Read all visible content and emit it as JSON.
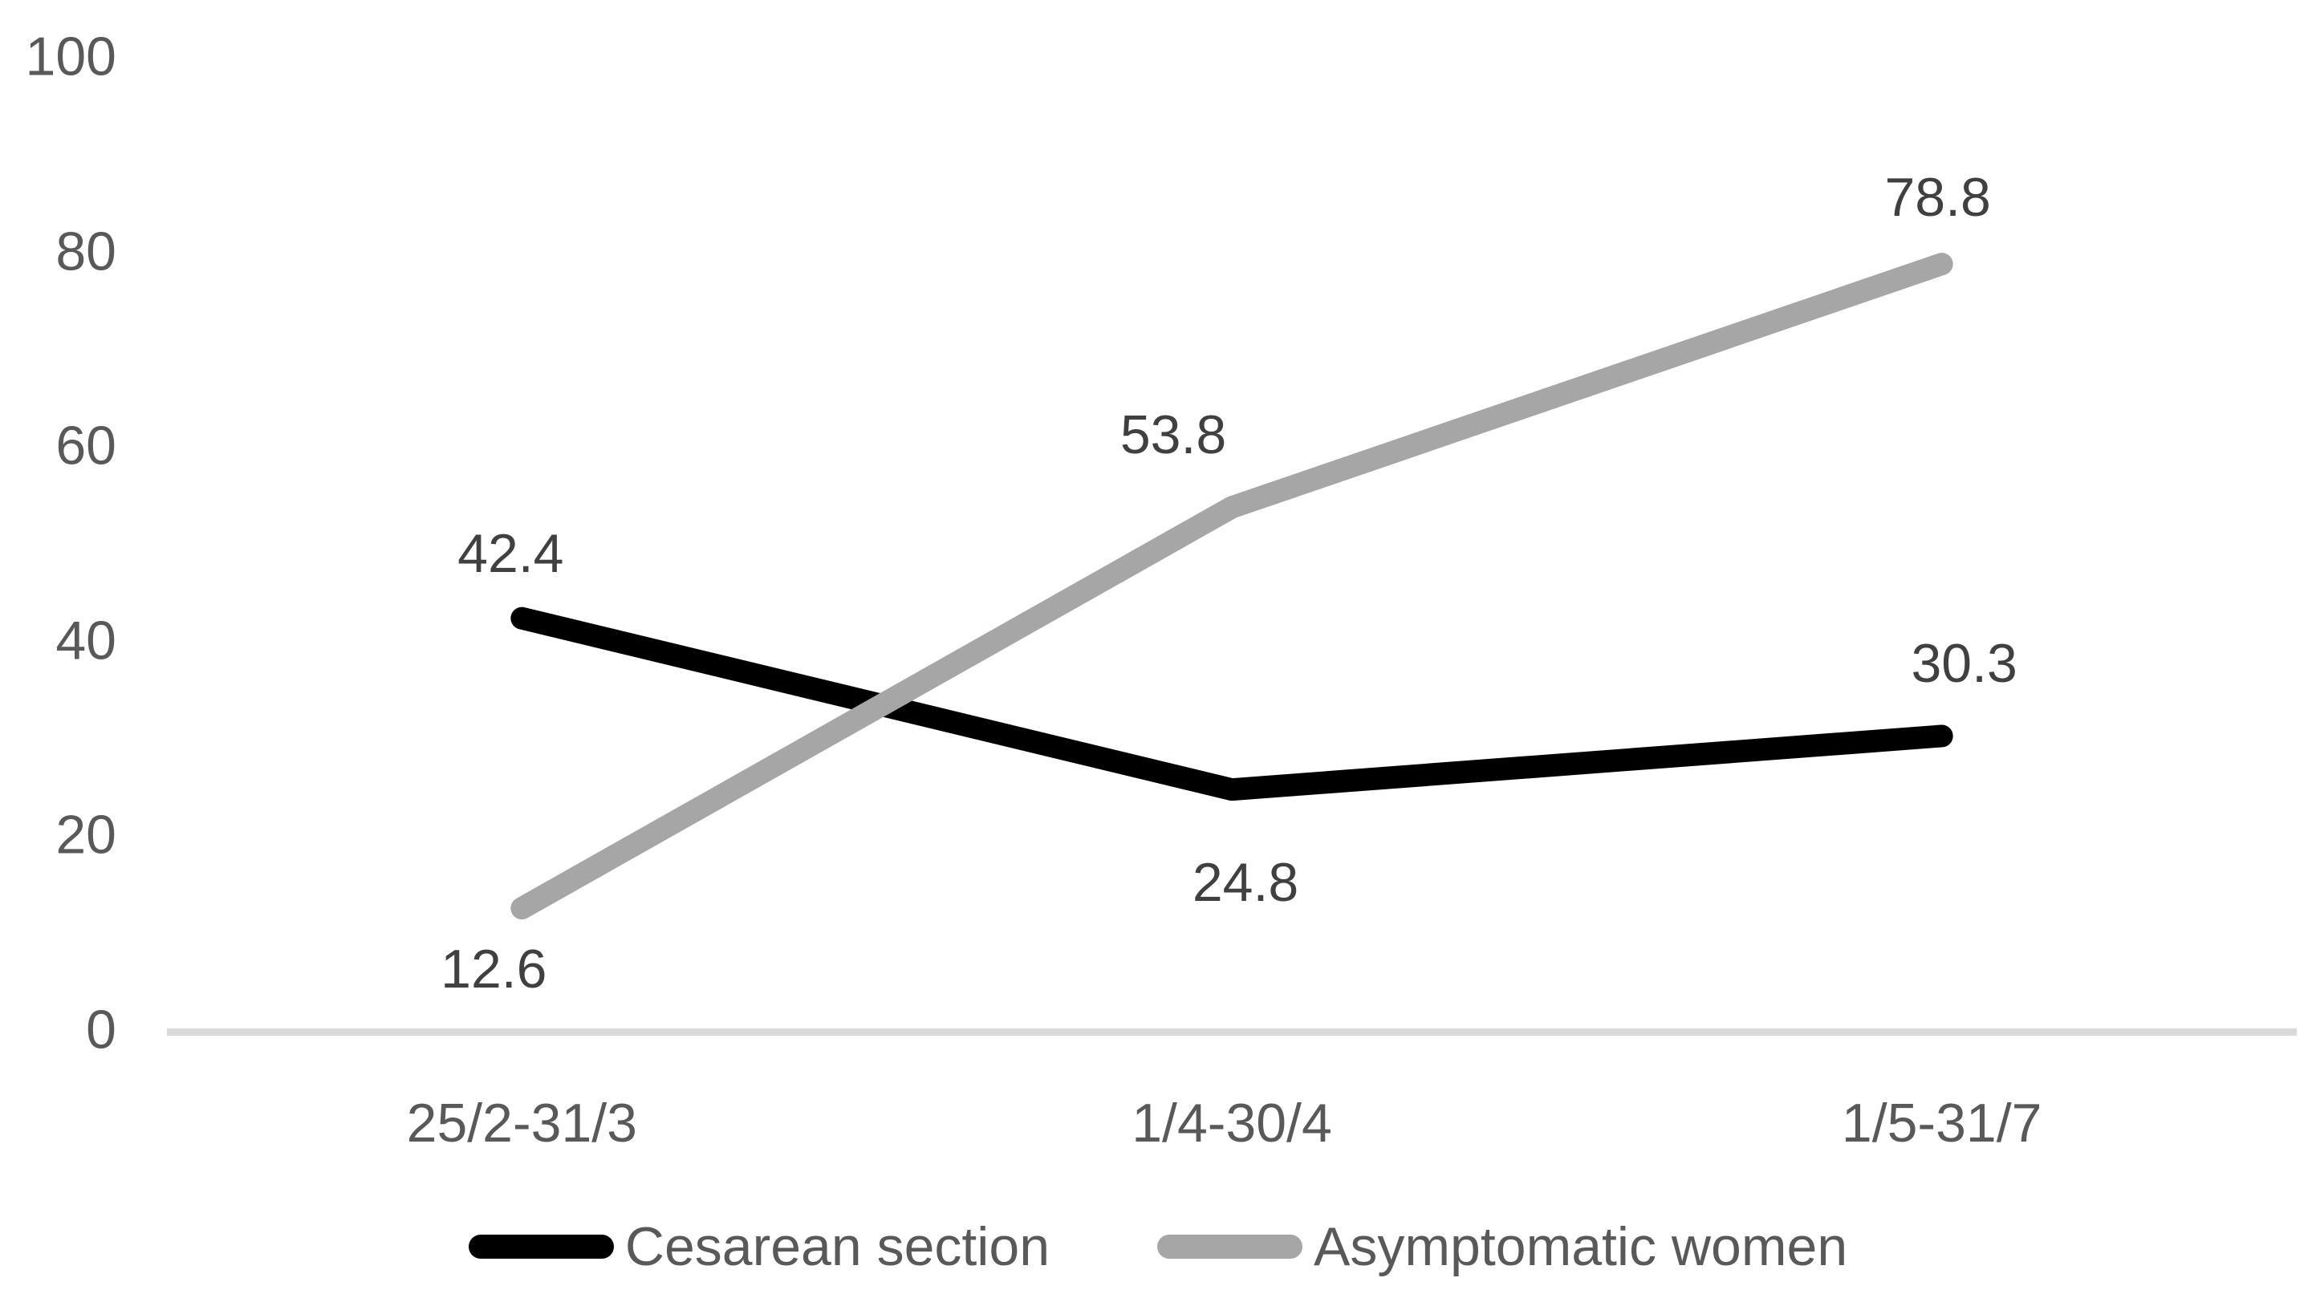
{
  "chart_data": {
    "type": "line",
    "categories": [
      "25/2-31/3",
      "1/4-30/4",
      "1/5-31/7"
    ],
    "series": [
      {
        "name": "Cesarean section",
        "color": "#000000",
        "values": [
          42.4,
          24.8,
          30.3
        ],
        "data_labels": [
          "42.4",
          "24.8",
          "30.3"
        ],
        "label_offsets": [
          [
            -14,
            -81
          ],
          [
            17,
            116
          ],
          [
            28,
            -90
          ]
        ]
      },
      {
        "name": "Asymptomatic women",
        "color": "#A6A6A6",
        "values": [
          12.6,
          53.8,
          78.8
        ],
        "data_labels": [
          "12.6",
          "53.8",
          "78.8"
        ],
        "label_offsets": [
          [
            -35,
            76
          ],
          [
            -73,
            -90
          ],
          [
            -5,
            -83
          ]
        ]
      }
    ],
    "yticks": [
      "0",
      "20",
      "40",
      "60",
      "80",
      "100"
    ],
    "ylim": [
      0,
      100
    ],
    "grid": false,
    "legend_position": "bottom",
    "title": "",
    "xlabel": "",
    "ylabel": "",
    "colors": {
      "background": "#FFFFFF",
      "axis_line": "#D9D9D9",
      "tick_label": "#595959",
      "category_label": "#595959",
      "data_label": "#404040",
      "legend_label": "#595959"
    }
  }
}
